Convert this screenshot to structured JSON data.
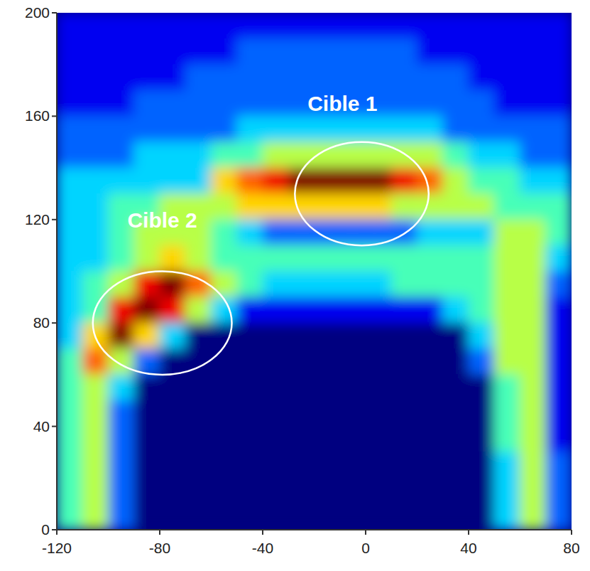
{
  "chart_data": {
    "type": "heatmap",
    "x": [
      -115,
      -105,
      -95,
      -85,
      -75,
      -65,
      -55,
      -45,
      -35,
      -25,
      -15,
      -5,
      5,
      15,
      25,
      35,
      45,
      55,
      65,
      75
    ],
    "y": [
      195,
      185,
      175,
      165,
      155,
      145,
      135,
      125,
      115,
      105,
      95,
      85,
      75,
      65,
      55,
      45,
      35,
      25,
      15,
      5
    ],
    "values": [
      [
        1,
        1,
        1,
        1,
        1,
        1,
        1,
        1,
        1,
        1,
        1,
        1,
        1,
        1,
        1,
        1,
        1,
        1,
        1,
        1
      ],
      [
        1,
        1,
        1,
        1,
        1,
        1,
        1,
        2,
        2,
        2,
        2,
        2,
        2,
        2,
        1,
        1,
        1,
        1,
        1,
        1
      ],
      [
        1,
        1,
        1,
        1,
        1,
        2,
        2,
        2,
        2,
        2,
        2,
        2,
        2,
        2,
        2,
        2,
        1,
        1,
        1,
        1
      ],
      [
        1,
        1,
        1,
        2,
        2,
        2,
        2,
        2,
        2,
        2,
        2,
        2,
        2,
        2,
        2,
        2,
        2,
        1,
        1,
        1
      ],
      [
        2,
        2,
        2,
        2,
        2,
        2,
        2,
        3,
        3,
        3,
        3,
        3,
        3,
        3,
        3,
        2,
        2,
        2,
        2,
        2
      ],
      [
        2,
        2,
        2,
        3,
        3,
        3,
        4,
        4,
        5,
        5,
        5,
        5,
        5,
        5,
        5,
        4,
        3,
        3,
        2,
        2
      ],
      [
        3,
        3,
        3,
        3,
        3,
        3,
        6,
        7,
        8,
        9,
        9,
        9,
        9,
        8,
        7,
        5,
        4,
        4,
        3,
        3
      ],
      [
        3,
        3,
        4,
        4,
        5,
        5,
        5,
        6,
        6,
        6,
        6,
        6,
        6,
        5,
        5,
        5,
        5,
        4,
        4,
        4
      ],
      [
        3,
        3,
        4,
        5,
        5,
        5,
        4,
        3,
        2,
        2,
        2,
        2,
        2,
        2,
        3,
        3,
        3,
        5,
        5,
        4
      ],
      [
        3,
        3,
        4,
        5,
        6,
        5,
        4,
        4,
        4,
        4,
        4,
        4,
        4,
        4,
        4,
        4,
        4,
        5,
        5,
        3
      ],
      [
        3,
        4,
        5,
        8,
        9,
        7,
        5,
        4,
        3,
        3,
        3,
        3,
        3,
        4,
        4,
        4,
        4,
        5,
        5,
        2
      ],
      [
        3,
        4,
        8,
        9,
        8,
        5,
        3,
        1,
        1,
        1,
        1,
        1,
        1,
        1,
        1,
        3,
        4,
        5,
        5,
        1
      ],
      [
        3,
        6,
        9,
        6,
        3,
        0,
        0,
        0,
        0,
        0,
        0,
        0,
        0,
        0,
        0,
        0,
        3,
        5,
        5,
        1
      ],
      [
        4,
        7,
        5,
        2,
        0,
        0,
        0,
        0,
        0,
        0,
        0,
        0,
        0,
        0,
        0,
        0,
        2,
        5,
        5,
        1
      ],
      [
        4,
        5,
        3,
        0,
        0,
        0,
        0,
        0,
        0,
        0,
        0,
        0,
        0,
        0,
        0,
        0,
        0,
        4,
        5,
        1
      ],
      [
        4,
        5,
        2,
        0,
        0,
        0,
        0,
        0,
        0,
        0,
        0,
        0,
        0,
        0,
        0,
        0,
        0,
        4,
        5,
        1
      ],
      [
        4,
        5,
        2,
        0,
        0,
        0,
        0,
        0,
        0,
        0,
        0,
        0,
        0,
        0,
        0,
        0,
        0,
        4,
        5,
        1
      ],
      [
        4,
        5,
        2,
        0,
        0,
        0,
        0,
        0,
        0,
        0,
        0,
        0,
        0,
        0,
        0,
        0,
        0,
        3,
        5,
        2
      ],
      [
        4,
        5,
        2,
        0,
        0,
        0,
        0,
        0,
        0,
        0,
        0,
        0,
        0,
        0,
        0,
        0,
        0,
        3,
        5,
        2
      ],
      [
        4,
        5,
        2,
        0,
        0,
        0,
        0,
        0,
        0,
        0,
        0,
        0,
        0,
        0,
        0,
        0,
        0,
        3,
        5,
        2
      ]
    ],
    "xlim": [
      -120,
      80
    ],
    "ylim": [
      0,
      200
    ],
    "xticks": [
      -120,
      -80,
      -40,
      0,
      40,
      80
    ],
    "yticks": [
      0,
      40,
      80,
      120,
      160,
      200
    ],
    "annotations": [
      {
        "text": "Cible 1",
        "x": -9,
        "y": 165,
        "region": {
          "x": -1.5,
          "y": 130,
          "rx": 26,
          "ry": 20
        }
      },
      {
        "text": "Cible 2",
        "x": -79,
        "y": 120,
        "region": {
          "x": -79,
          "y": 80,
          "rx": 27,
          "ry": 20
        }
      }
    ]
  }
}
